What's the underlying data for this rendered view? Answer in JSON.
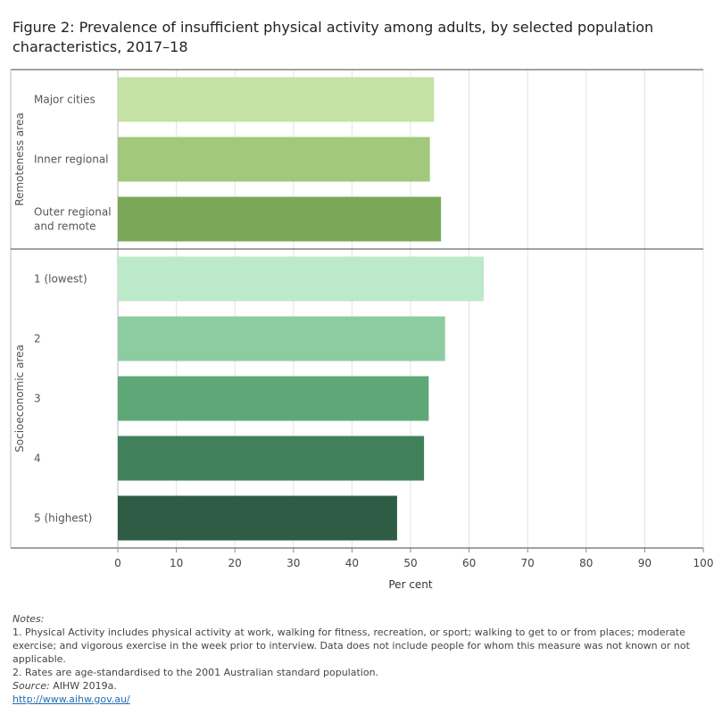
{
  "chart_data": {
    "type": "bar",
    "orientation": "horizontal",
    "title": "Figure 2: Prevalence of insufficient physical activity among adults, by selected population characteristics, 2017–18",
    "xlabel": "Per cent",
    "xlim": [
      0,
      100
    ],
    "xticks": [
      "0",
      "10",
      "20",
      "30",
      "40",
      "50",
      "60",
      "70",
      "80",
      "90",
      "100"
    ],
    "grid": "vertical",
    "groups": [
      {
        "name": "Remoteness area",
        "bars": [
          {
            "label": [
              "Major cities"
            ],
            "value": 54,
            "color": "#c3e2a4"
          },
          {
            "label": [
              "Inner regional"
            ],
            "value": 53.3,
            "color": "#a2c87c"
          },
          {
            "label": [
              "Outer regional",
              "and remote"
            ],
            "value": 55.2,
            "color": "#7ba858"
          }
        ]
      },
      {
        "name": "Socioeconomic area",
        "bars": [
          {
            "label": [
              "1 (lowest)"
            ],
            "value": 62.5,
            "color": "#bde9cb"
          },
          {
            "label": [
              "2"
            ],
            "value": 55.9,
            "color": "#8ccca0"
          },
          {
            "label": [
              "3"
            ],
            "value": 53.1,
            "color": "#5ea878"
          },
          {
            "label": [
              "4"
            ],
            "value": 52.3,
            "color": "#40815b"
          },
          {
            "label": [
              "5 (highest)"
            ],
            "value": 47.7,
            "color": "#2e5c45"
          }
        ]
      }
    ]
  },
  "notes": {
    "heading": "Notes:",
    "line1": "1. Physical Activity includes physical activity at work, walking for fitness, recreation, or sport; walking to get to or from places; moderate exercise; and vigorous exercise in the week prior to interview. Data does not include people for whom this measure was not known or not applicable.",
    "line2": "2. Rates are age-standardised to the 2001 Australian standard population.",
    "source_label": "Source:",
    "source_text": " AIHW 2019a.",
    "link": "http://www.aihw.gov.au/"
  }
}
